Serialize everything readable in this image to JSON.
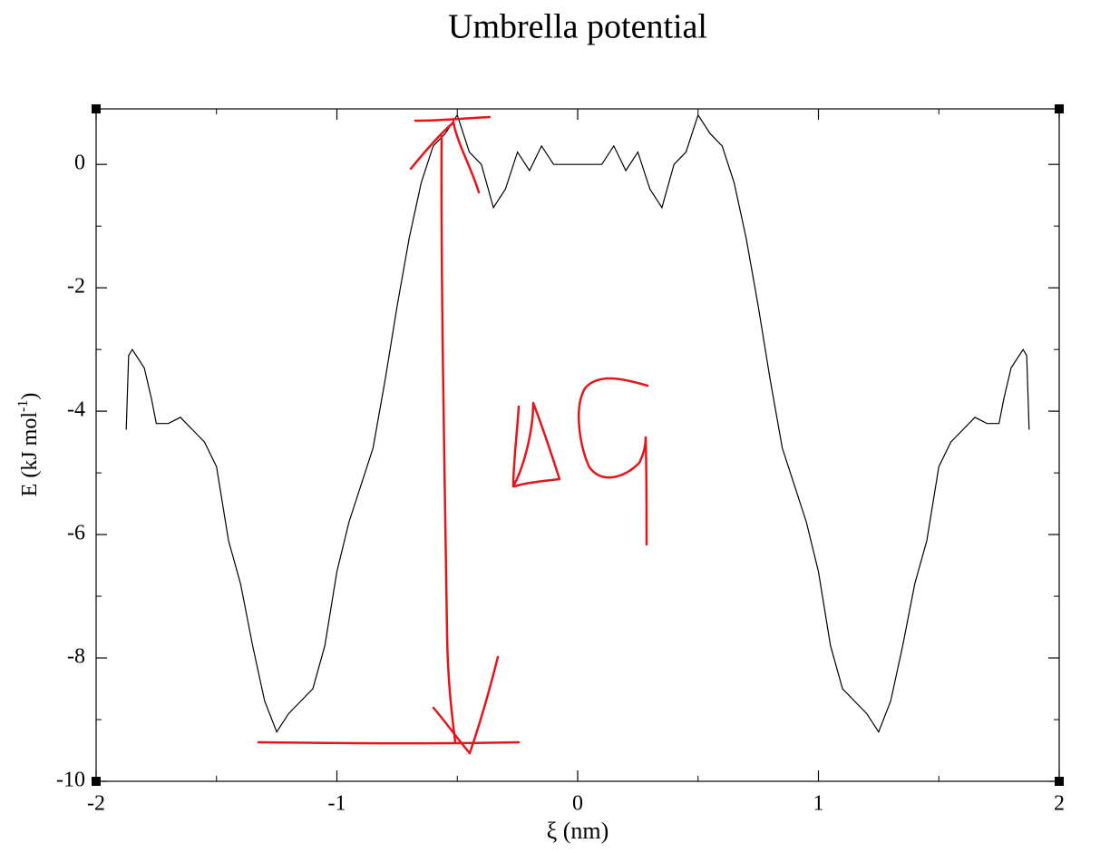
{
  "chart_data": {
    "type": "line",
    "title": "Umbrella potential",
    "xlabel": "ξ (nm)",
    "ylabel": [
      "E (kJ mol",
      "-1",
      ")"
    ],
    "x": [
      -1.875,
      -1.865,
      -1.85,
      -1.8,
      -1.77,
      -1.75,
      -1.7,
      -1.65,
      -1.6,
      -1.55,
      -1.5,
      -1.45,
      -1.4,
      -1.35,
      -1.3,
      -1.25,
      -1.2,
      -1.15,
      -1.1,
      -1.05,
      -1.0,
      -0.95,
      -0.9,
      -0.85,
      -0.8,
      -0.75,
      -0.7,
      -0.65,
      -0.6,
      -0.55,
      -0.5,
      -0.45,
      -0.4,
      -0.35,
      -0.3,
      -0.25,
      -0.2,
      -0.15,
      -0.1,
      -0.05,
      0,
      0.05,
      0.1,
      0.15,
      0.2,
      0.25,
      0.3,
      0.35,
      0.4,
      0.45,
      0.5,
      0.55,
      0.6,
      0.65,
      0.7,
      0.75,
      0.8,
      0.85,
      0.9,
      0.95,
      1.0,
      1.05,
      1.1,
      1.15,
      1.2,
      1.25,
      1.3,
      1.35,
      1.4,
      1.45,
      1.5,
      1.55,
      1.6,
      1.65,
      1.7,
      1.75,
      1.77,
      1.8,
      1.85,
      1.865,
      1.875
    ],
    "series": [
      {
        "color": "#000000",
        "values": [
          -4.3,
          -3.1,
          -3.0,
          -3.3,
          -3.8,
          -4.2,
          -4.2,
          -4.1,
          -4.3,
          -4.5,
          -4.9,
          -6.1,
          -6.8,
          -7.8,
          -8.7,
          -9.2,
          -8.9,
          -8.7,
          -8.5,
          -7.8,
          -6.6,
          -5.8,
          -5.2,
          -4.6,
          -3.5,
          -2.3,
          -1.2,
          -0.3,
          0.3,
          0.5,
          0.8,
          0.2,
          0.0,
          -0.7,
          -0.4,
          0.2,
          -0.1,
          0.3,
          0.0,
          0.0,
          0.0,
          0.0,
          0.0,
          0.3,
          -0.1,
          0.2,
          -0.4,
          -0.7,
          0.0,
          0.2,
          0.8,
          0.5,
          0.3,
          -0.3,
          -1.2,
          -2.3,
          -3.5,
          -4.6,
          -5.2,
          -5.8,
          -6.6,
          -7.8,
          -8.5,
          -8.7,
          -8.9,
          -9.2,
          -8.7,
          -7.8,
          -6.8,
          -6.1,
          -4.9,
          -4.5,
          -4.3,
          -4.1,
          -4.2,
          -4.2,
          -3.8,
          -3.3,
          -3.0,
          -3.1,
          -4.3
        ]
      }
    ],
    "xlim": [
      -2,
      2
    ],
    "xticks": [
      -2,
      -1,
      0,
      1,
      2
    ],
    "ylim": [
      -10,
      0.9
    ],
    "yticks": [
      -10,
      -8,
      -6,
      -4,
      -2,
      0
    ]
  }
}
